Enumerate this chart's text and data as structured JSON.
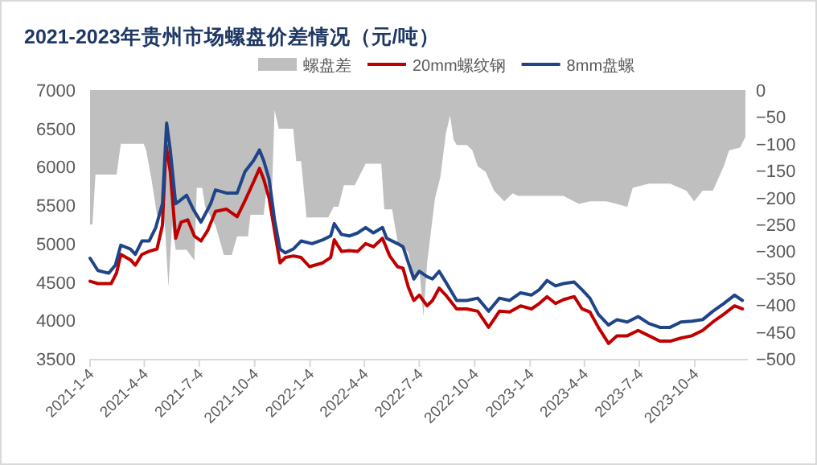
{
  "chart_data": {
    "type": "line",
    "title": "2021-2023年贵州市场螺盘价差情况（元/吨）",
    "legend": "top",
    "xlim": [
      "2021-01-04",
      "2023-12-31"
    ],
    "xticks": [
      {
        "value": "2021-01-04",
        "label": "2021-1-4"
      },
      {
        "value": "2021-04-04",
        "label": "2021-4-4"
      },
      {
        "value": "2021-07-04",
        "label": "2021-7-4"
      },
      {
        "value": "2021-10-04",
        "label": "2021-10-4"
      },
      {
        "value": "2022-01-04",
        "label": "2022-1-4"
      },
      {
        "value": "2022-04-04",
        "label": "2022-4-4"
      },
      {
        "value": "2022-07-04",
        "label": "2022-7-4"
      },
      {
        "value": "2022-10-04",
        "label": "2022-10-4"
      },
      {
        "value": "2023-01-04",
        "label": "2023-1-4"
      },
      {
        "value": "2023-04-04",
        "label": "2023-4-4"
      },
      {
        "value": "2023-07-04",
        "label": "2023-7-4"
      },
      {
        "value": "2023-10-04",
        "label": "2023-10-4"
      }
    ],
    "ylim": [
      3500,
      7000
    ],
    "yticks": [
      3500,
      4000,
      4500,
      5000,
      5500,
      6000,
      6500,
      7000
    ],
    "y2lim": [
      -500,
      0
    ],
    "y2ticks": [
      -500,
      -450,
      -400,
      -350,
      -300,
      -250,
      -200,
      -150,
      -100,
      -50,
      0
    ],
    "series": [
      {
        "name": "螺盘差",
        "type": "area",
        "axis": "y2",
        "color": "#bfbfbf",
        "x": [
          "2021-01-04",
          "2021-01-08",
          "2021-01-13",
          "2021-02-17",
          "2021-02-24",
          "2021-04-03",
          "2021-04-07",
          "2021-04-16",
          "2021-04-25",
          "2021-05-04",
          "2021-05-08",
          "2021-05-14",
          "2021-05-20",
          "2021-05-26",
          "2021-06-13",
          "2021-06-26",
          "2021-06-30",
          "2021-07-09",
          "2021-07-14",
          "2021-07-31",
          "2021-08-14",
          "2021-08-27",
          "2021-09-05",
          "2021-09-23",
          "2021-09-27",
          "2021-10-19",
          "2021-10-24",
          "2021-11-02",
          "2021-11-06",
          "2021-11-13",
          "2021-12-07",
          "2021-12-12",
          "2021-12-20",
          "2021-12-29",
          "2022-02-03",
          "2022-02-12",
          "2022-02-20",
          "2022-03-01",
          "2022-03-19",
          "2022-04-06",
          "2022-05-02",
          "2022-05-07",
          "2022-05-20",
          "2022-05-29",
          "2022-06-16",
          "2022-06-25",
          "2022-07-04",
          "2022-07-11",
          "2022-07-17",
          "2022-07-30",
          "2022-08-08",
          "2022-08-17",
          "2022-08-24",
          "2022-08-30",
          "2022-09-04",
          "2022-09-21",
          "2022-09-30",
          "2022-10-09",
          "2022-10-22",
          "2022-11-05",
          "2022-11-22",
          "2022-12-06",
          "2022-12-15",
          "2022-12-28",
          "2023-02-28",
          "2023-03-26",
          "2023-04-13",
          "2023-05-10",
          "2023-05-28",
          "2023-06-14",
          "2023-06-23",
          "2023-07-20",
          "2023-08-24",
          "2023-09-20",
          "2023-10-03",
          "2023-10-17",
          "2023-11-03",
          "2023-11-21",
          "2023-11-30",
          "2023-12-18",
          "2023-12-27"
        ],
        "values": [
          -250,
          -250,
          -157,
          -157,
          -100,
          -100,
          -112,
          -167,
          -232,
          -232,
          -250,
          -367,
          -250,
          -297,
          -297,
          -317,
          -182,
          -182,
          -217,
          -252,
          -307,
          -307,
          -272,
          -272,
          -232,
          -232,
          -182,
          -182,
          -37,
          -72,
          -72,
          -132,
          -132,
          -237,
          -237,
          -217,
          -217,
          -177,
          -177,
          -137,
          -137,
          -222,
          -222,
          -282,
          -302,
          -352,
          -332,
          -422,
          -322,
          -202,
          -162,
          -82,
          -47,
          -92,
          -102,
          -102,
          -112,
          -142,
          -152,
          -187,
          -207,
          -192,
          -197,
          -197,
          -197,
          -212,
          -207,
          -207,
          -212,
          -217,
          -182,
          -174,
          -174,
          -187,
          -207,
          -187,
          -187,
          -142,
          -112,
          -107,
          -87
        ]
      },
      {
        "name": "20mm螺纹钢",
        "color": "#c00000",
        "x": [
          "2021-01-04",
          "2021-01-17",
          "2021-02-08",
          "2021-02-17",
          "2021-02-24",
          "2021-03-12",
          "2021-03-20",
          "2021-03-31",
          "2021-04-12",
          "2021-04-25",
          "2021-05-04",
          "2021-05-10",
          "2021-05-17",
          "2021-05-26",
          "2021-06-04",
          "2021-06-15",
          "2021-06-26",
          "2021-07-07",
          "2021-07-18",
          "2021-07-31",
          "2021-08-18",
          "2021-09-05",
          "2021-09-18",
          "2021-10-02",
          "2021-10-12",
          "2021-10-19",
          "2021-10-28",
          "2021-11-06",
          "2021-11-15",
          "2021-11-24",
          "2021-12-07",
          "2021-12-20",
          "2022-01-03",
          "2022-01-25",
          "2022-02-07",
          "2022-02-13",
          "2022-02-25",
          "2022-03-10",
          "2022-03-24",
          "2022-04-06",
          "2022-04-19",
          "2022-05-04",
          "2022-05-16",
          "2022-05-29",
          "2022-06-07",
          "2022-06-16",
          "2022-06-25",
          "2022-07-04",
          "2022-07-17",
          "2022-07-26",
          "2022-08-06",
          "2022-08-17",
          "2022-09-04",
          "2022-09-21",
          "2022-10-09",
          "2022-10-27",
          "2022-11-14",
          "2022-12-01",
          "2022-12-19",
          "2023-01-06",
          "2023-01-19",
          "2023-02-01",
          "2023-02-15",
          "2023-02-28",
          "2023-03-18",
          "2023-03-31",
          "2023-04-13",
          "2023-04-27",
          "2023-05-14",
          "2023-05-28",
          "2023-06-14",
          "2023-07-02",
          "2023-07-20",
          "2023-08-07",
          "2023-08-24",
          "2023-09-11",
          "2023-09-29",
          "2023-10-17",
          "2023-11-03",
          "2023-11-21",
          "2023-12-09",
          "2023-12-22"
        ],
        "values": [
          4510,
          4480,
          4480,
          4620,
          4860,
          4790,
          4720,
          4860,
          4900,
          4930,
          5240,
          6290,
          5940,
          5070,
          5280,
          5310,
          5100,
          5035,
          5170,
          5420,
          5450,
          5350,
          5560,
          5800,
          5980,
          5840,
          5590,
          5170,
          4750,
          4820,
          4840,
          4820,
          4700,
          4750,
          4820,
          5050,
          4900,
          4910,
          4900,
          5000,
          4960,
          5070,
          4840,
          4700,
          4680,
          4430,
          4260,
          4330,
          4190,
          4260,
          4420,
          4330,
          4150,
          4150,
          4120,
          3910,
          4120,
          4110,
          4190,
          4150,
          4220,
          4310,
          4220,
          4270,
          4310,
          4150,
          4110,
          3910,
          3700,
          3800,
          3800,
          3870,
          3800,
          3730,
          3730,
          3770,
          3800,
          3870,
          3980,
          4080,
          4190,
          4150
        ]
      },
      {
        "name": "8mm盘螺",
        "color": "#1f4488",
        "x": [
          "2021-01-04",
          "2021-01-17",
          "2021-02-04",
          "2021-02-15",
          "2021-02-24",
          "2021-03-12",
          "2021-03-20",
          "2021-03-31",
          "2021-04-12",
          "2021-04-23",
          "2021-05-04",
          "2021-05-11",
          "2021-05-17",
          "2021-05-26",
          "2021-06-02",
          "2021-06-13",
          "2021-06-24",
          "2021-07-07",
          "2021-07-23",
          "2021-07-31",
          "2021-08-18",
          "2021-09-05",
          "2021-09-18",
          "2021-10-02",
          "2021-10-12",
          "2021-10-19",
          "2021-10-28",
          "2021-11-06",
          "2021-11-15",
          "2021-11-24",
          "2021-12-07",
          "2021-12-20",
          "2022-01-07",
          "2022-01-25",
          "2022-02-07",
          "2022-02-13",
          "2022-02-25",
          "2022-03-10",
          "2022-03-24",
          "2022-04-06",
          "2022-04-19",
          "2022-05-04",
          "2022-05-11",
          "2022-05-29",
          "2022-06-07",
          "2022-06-16",
          "2022-06-25",
          "2022-07-04",
          "2022-07-17",
          "2022-07-26",
          "2022-08-06",
          "2022-08-17",
          "2022-09-04",
          "2022-09-21",
          "2022-10-09",
          "2022-10-27",
          "2022-11-14",
          "2022-12-01",
          "2022-12-19",
          "2023-01-06",
          "2023-01-19",
          "2023-02-01",
          "2023-02-15",
          "2023-02-28",
          "2023-03-18",
          "2023-03-31",
          "2023-04-13",
          "2023-04-27",
          "2023-05-14",
          "2023-05-28",
          "2023-06-14",
          "2023-07-02",
          "2023-07-20",
          "2023-08-07",
          "2023-08-24",
          "2023-09-11",
          "2023-09-29",
          "2023-10-17",
          "2023-11-03",
          "2023-11-21",
          "2023-12-09",
          "2023-12-22"
        ],
        "values": [
          4810,
          4650,
          4615,
          4720,
          4980,
          4930,
          4860,
          5035,
          5035,
          5210,
          5520,
          6570,
          6220,
          5520,
          5560,
          5630,
          5450,
          5280,
          5520,
          5700,
          5660,
          5660,
          5940,
          6080,
          6220,
          6080,
          5840,
          5310,
          4930,
          4880,
          4930,
          5035,
          5000,
          5050,
          5100,
          5260,
          5120,
          5100,
          5140,
          5210,
          5140,
          5210,
          5070,
          5000,
          4960,
          4750,
          4540,
          4640,
          4570,
          4540,
          4640,
          4500,
          4260,
          4260,
          4290,
          4120,
          4290,
          4260,
          4360,
          4330,
          4400,
          4520,
          4450,
          4480,
          4500,
          4400,
          4290,
          4080,
          3940,
          4010,
          3980,
          4050,
          3960,
          3910,
          3910,
          3980,
          3990,
          4010,
          4120,
          4220,
          4330,
          4260
        ]
      }
    ]
  }
}
